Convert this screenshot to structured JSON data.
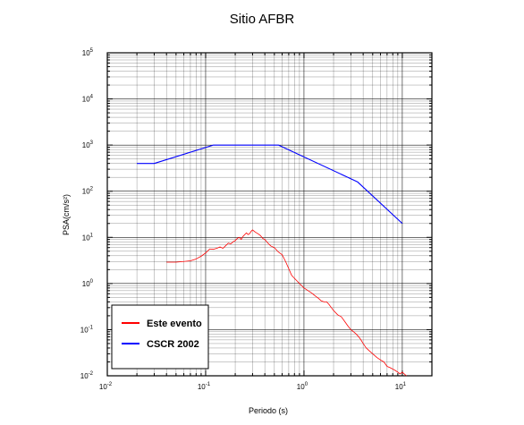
{
  "chart_data": {
    "type": "line",
    "title": "Sitio AFBR",
    "xlabel": "Periodo (s)",
    "ylabel": "PSA(cm/s²)",
    "xscale": "log",
    "yscale": "log",
    "xlim": [
      0.01,
      20
    ],
    "ylim": [
      0.01,
      100000
    ],
    "grid": true,
    "legend_position": "bottom-left",
    "x_ticks": [
      {
        "base": "10",
        "exp": "-2"
      },
      {
        "base": "10",
        "exp": "-1"
      },
      {
        "base": "10",
        "exp": "0"
      },
      {
        "base": "10",
        "exp": "1"
      }
    ],
    "y_ticks": [
      {
        "base": "10",
        "exp": "-2"
      },
      {
        "base": "10",
        "exp": "-1"
      },
      {
        "base": "10",
        "exp": "0"
      },
      {
        "base": "10",
        "exp": "1"
      },
      {
        "base": "10",
        "exp": "2"
      },
      {
        "base": "10",
        "exp": "3"
      },
      {
        "base": "10",
        "exp": "4"
      },
      {
        "base": "10",
        "exp": "5"
      }
    ],
    "series": [
      {
        "name": "Este evento",
        "color": "#ff0000",
        "x": [
          0.04,
          0.05,
          0.06,
          0.07,
          0.08,
          0.09,
          0.1,
          0.11,
          0.12,
          0.13,
          0.14,
          0.15,
          0.16,
          0.17,
          0.18,
          0.19,
          0.2,
          0.21,
          0.22,
          0.23,
          0.24,
          0.25,
          0.26,
          0.27,
          0.28,
          0.29,
          0.3,
          0.32,
          0.34,
          0.36,
          0.38,
          0.4,
          0.43,
          0.46,
          0.5,
          0.55,
          0.6,
          0.65,
          0.7,
          0.75,
          0.8,
          0.9,
          1.0,
          1.1,
          1.2,
          1.3,
          1.4,
          1.5,
          1.6,
          1.7,
          1.8,
          1.9,
          2.0,
          2.2,
          2.4,
          2.6,
          2.8,
          3.0,
          3.2,
          3.4,
          3.6,
          3.8,
          4.0,
          4.3,
          4.6,
          5.0,
          5.5,
          6.0,
          6.5,
          7.0,
          7.5,
          8.0,
          8.5,
          9.0,
          9.5,
          10.0,
          11.0
        ],
        "y": [
          2.9,
          2.9,
          3.0,
          3.1,
          3.4,
          3.9,
          4.6,
          5.6,
          5.5,
          5.8,
          6.2,
          5.8,
          6.6,
          7.5,
          7.2,
          8.0,
          8.5,
          9.5,
          10.0,
          9.0,
          10.5,
          11.5,
          12.5,
          11.5,
          12.0,
          13.5,
          14.5,
          13.0,
          12.0,
          11.0,
          9.5,
          9.0,
          7.5,
          6.5,
          6.0,
          4.8,
          4.2,
          3.0,
          2.1,
          1.5,
          1.3,
          1.0,
          0.8,
          0.7,
          0.62,
          0.54,
          0.48,
          0.42,
          0.4,
          0.4,
          0.35,
          0.3,
          0.26,
          0.21,
          0.19,
          0.15,
          0.12,
          0.1,
          0.09,
          0.08,
          0.07,
          0.06,
          0.05,
          0.04,
          0.035,
          0.03,
          0.025,
          0.022,
          0.02,
          0.016,
          0.015,
          0.014,
          0.013,
          0.012,
          0.011,
          0.012,
          0.01
        ]
      },
      {
        "name": "CSCR 2002",
        "color": "#0000ff",
        "x": [
          0.02,
          0.03,
          0.12,
          0.55,
          3.5,
          10.0
        ],
        "y": [
          400,
          400,
          1000,
          1000,
          160,
          20
        ]
      }
    ]
  }
}
